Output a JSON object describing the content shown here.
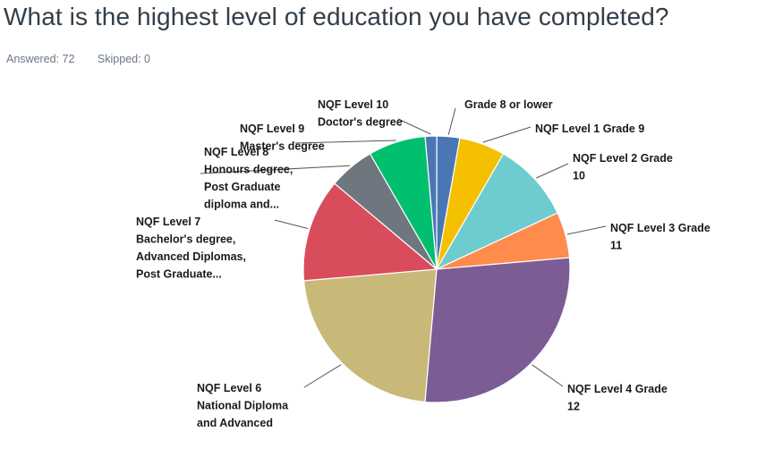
{
  "question": "What is the highest level of education you have completed?",
  "answered_label": "Answered: 72",
  "skipped_label": "Skipped: 0",
  "chart_data": {
    "type": "pie",
    "start_angle_deg": 0,
    "direction": "clockwise",
    "slices": [
      {
        "label": [
          "Grade 8 or lower"
        ],
        "percent": 2.78,
        "color": "#4a77b4"
      },
      {
        "label": [
          "NQF Level 1 Grade 9"
        ],
        "percent": 5.56,
        "color": "#f5c000"
      },
      {
        "label": [
          "NQF Level 2 Grade",
          "10"
        ],
        "percent": 9.72,
        "color": "#6ecbd0"
      },
      {
        "label": [
          "NQF Level 3 Grade",
          "11"
        ],
        "percent": 5.56,
        "color": "#ff8b4d"
      },
      {
        "label": [
          "NQF Level 4 Grade",
          "12"
        ],
        "percent": 27.78,
        "color": "#7b5c95"
      },
      {
        "label": [
          "NQF Level 6",
          "National Diploma",
          "and Advanced"
        ],
        "percent": 22.22,
        "color": "#c9b979"
      },
      {
        "label": [
          "NQF Level 7",
          "Bachelor's degree,",
          "Advanced Diplomas,",
          "Post Graduate..."
        ],
        "percent": 12.5,
        "color": "#d94c5c"
      },
      {
        "label": [
          "NQF Level 8",
          "Honours degree,",
          "Post Graduate",
          "diploma and..."
        ],
        "percent": 5.56,
        "color": "#6e767f"
      },
      {
        "label": [
          "NQF Level 9",
          "Master's degree"
        ],
        "percent": 6.94,
        "color": "#00bf6f"
      },
      {
        "label": [
          "NQF Level 10",
          "Doctor's degree"
        ],
        "percent": 1.39,
        "color": "#4a77b4"
      }
    ]
  }
}
